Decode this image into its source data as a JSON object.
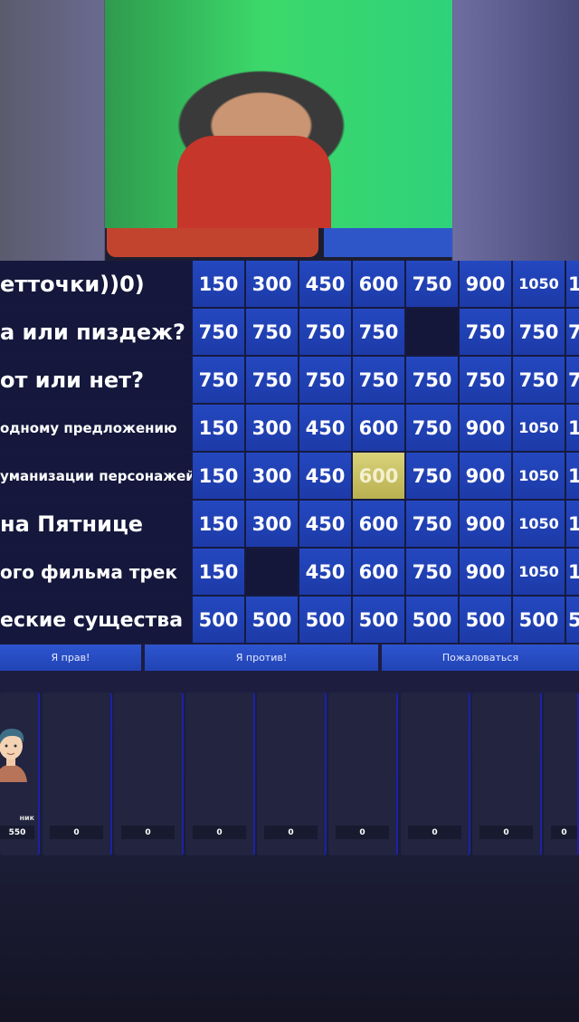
{
  "board": {
    "categories": [
      "етточки))0)",
      "а или пиздеж?",
      "от или нет?",
      "одному предложению",
      "уманизации персонажей",
      "на Пятнице",
      "ого фильма трек",
      "еские существа"
    ],
    "rows": [
      [
        "150",
        "300",
        "450",
        "600",
        "750",
        "900",
        "1050",
        "1"
      ],
      [
        "750",
        "750",
        "750",
        "750",
        "",
        "750",
        "750",
        "7"
      ],
      [
        "750",
        "750",
        "750",
        "750",
        "750",
        "750",
        "750",
        "7"
      ],
      [
        "150",
        "300",
        "450",
        "600",
        "750",
        "900",
        "1050",
        "1"
      ],
      [
        "150",
        "300",
        "450",
        "600",
        "750",
        "900",
        "1050",
        "1"
      ],
      [
        "150",
        "300",
        "450",
        "600",
        "750",
        "900",
        "1050",
        "1"
      ],
      [
        "150",
        "",
        "450",
        "600",
        "750",
        "900",
        "1050",
        "1"
      ],
      [
        "500",
        "500",
        "500",
        "500",
        "500",
        "500",
        "500",
        "5"
      ]
    ],
    "selected_cell": {
      "row": 4,
      "col": 3
    },
    "selected_color": "#d8d27a",
    "cell_color": "#2448c0"
  },
  "actions": {
    "right": "Я прав!",
    "against": "Я против!",
    "complain": "Пожаловаться"
  },
  "players": [
    {
      "name": "ник",
      "score": "550",
      "avatar": "boy-avatar-icon"
    },
    {
      "name": "",
      "score": "0"
    },
    {
      "name": "",
      "score": "0"
    },
    {
      "name": "",
      "score": "0"
    },
    {
      "name": "",
      "score": "0"
    },
    {
      "name": "",
      "score": "0"
    },
    {
      "name": "",
      "score": "0"
    },
    {
      "name": "",
      "score": "0"
    },
    {
      "name": "",
      "score": "0"
    }
  ]
}
